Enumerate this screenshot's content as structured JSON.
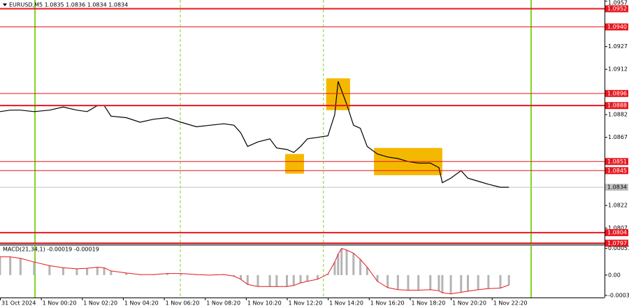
{
  "chart_data": [
    {
      "type": "line",
      "title": "EURUSD,M5 1.0835 1.0836 1.0834 1.0834",
      "x": [
        0,
        6,
        12,
        20,
        29,
        37,
        45,
        51,
        57,
        61,
        65,
        74,
        82,
        90,
        98,
        106,
        115,
        123,
        131,
        137,
        141,
        145,
        151,
        158,
        162,
        168,
        172,
        176,
        180,
        186,
        192,
        196,
        198,
        200,
        203,
        207,
        211,
        215,
        221,
        227,
        233,
        239,
        245,
        252,
        257,
        259,
        264,
        270,
        274,
        280,
        286,
        293,
        298
      ],
      "values": [
        1.0884,
        1.0885,
        1.0885,
        1.0884,
        1.0885,
        1.0887,
        1.0885,
        1.0884,
        1.0888,
        1.0888,
        1.0881,
        1.088,
        1.0877,
        1.0879,
        1.088,
        1.0877,
        1.0874,
        1.0875,
        1.0876,
        1.0875,
        1.087,
        1.0861,
        1.0864,
        1.0866,
        1.086,
        1.0859,
        1.0857,
        1.0861,
        1.0866,
        1.0867,
        1.0868,
        1.0882,
        1.0904,
        1.0898,
        1.0889,
        1.0875,
        1.0873,
        1.0861,
        1.0856,
        1.0854,
        1.0853,
        1.0851,
        1.085,
        1.085,
        1.0847,
        1.0837,
        1.084,
        1.0845,
        1.084,
        1.0838,
        1.0836,
        1.0834,
        1.0834
      ],
      "color": "#000000",
      "xlim": [
        0,
        354
      ],
      "ylim": [
        1.07962,
        1.09578
      ],
      "yticks": [
        1.0957,
        1.0927,
        1.0912,
        1.0882,
        1.0867,
        1.0822,
        1.0807
      ],
      "xticks": [
        {
          "value": 0,
          "label": "31 Oct 2024"
        },
        {
          "value": 24,
          "label": "1 Nov 00:20"
        },
        {
          "value": 48,
          "label": "1 Nov 02:20"
        },
        {
          "value": 72,
          "label": "1 Nov 04:20"
        },
        {
          "value": 96,
          "label": "1 Nov 06:20"
        },
        {
          "value": 120,
          "label": "1 Nov 08:20"
        },
        {
          "value": 144,
          "label": "1 Nov 10:20"
        },
        {
          "value": 168,
          "label": "1 Nov 12:20"
        },
        {
          "value": 192,
          "label": "1 Nov 14:20"
        },
        {
          "value": 216,
          "label": "1 Nov 16:20"
        },
        {
          "value": 240,
          "label": "1 Nov 18:20"
        },
        {
          "value": 264,
          "label": "1 Nov 20:20"
        },
        {
          "value": 288,
          "label": "1 Nov 22:20"
        }
      ],
      "levels": [
        {
          "value": 1.0952,
          "label": "1.0952",
          "weight": 2
        },
        {
          "value": 1.094,
          "label": "1.0940",
          "weight": 1
        },
        {
          "value": 1.0896,
          "label": "1.0896",
          "weight": 1
        },
        {
          "value": 1.0888,
          "label": "1.0888",
          "weight": 2
        },
        {
          "value": 1.0851,
          "label": "1.0851",
          "weight": 1
        },
        {
          "value": 1.0845,
          "label": "1.0845",
          "weight": 1
        },
        {
          "value": 1.0804,
          "label": "1.0804",
          "weight": 2
        },
        {
          "value": 1.0797,
          "label": "1.0797",
          "weight": 2
        }
      ],
      "level_color": "#e8171f",
      "last_price": 1.0834,
      "session_lines": [
        {
          "x": 20.5,
          "style": "solid"
        },
        {
          "x": 105.6,
          "style": "dashed"
        },
        {
          "x": 189.4,
          "style": "dashed"
        },
        {
          "x": 311,
          "style": "solid"
        }
      ],
      "session_color": "#7ed321",
      "zones": [
        {
          "x": [
            167,
            178
          ],
          "y": [
            1.0843,
            1.0856
          ]
        },
        {
          "x": [
            191,
            205
          ],
          "y": [
            1.0885,
            1.0906
          ]
        },
        {
          "x": [
            219,
            259
          ],
          "y": [
            1.0842,
            1.086
          ]
        }
      ],
      "zone_color": "#f5b800"
    },
    {
      "type": "bar",
      "title": "MACD(21,34,1) -0.00019 -0.00019",
      "values": [
        0.00035,
        0.00035,
        0.00032,
        0.00025,
        0.00018,
        0.00014,
        0.00012,
        0.00013,
        0.00015,
        0.00014,
        8e-05,
        4e-05,
        1e-05,
        1e-05,
        3e-05,
        3e-05,
        1e-05,
        0,
        1e-05,
        -2e-05,
        -8e-05,
        -0.00018,
        -0.00022,
        -0.00022,
        -0.00022,
        -0.00022,
        -0.0002,
        -0.00015,
        -0.00012,
        -8e-05,
        2e-05,
        0.00025,
        0.0004,
        0.00051,
        0.00048,
        0.00042,
        0.0003,
        0.00015,
        -0.00012,
        -0.00024,
        -0.00028,
        -0.00029,
        -0.00029,
        -0.00028,
        -0.0003,
        -0.00034,
        -0.00036,
        -0.00033,
        -0.00031,
        -0.00028,
        -0.00026,
        -0.00025,
        -0.00019
      ],
      "color": "#b4b4b4",
      "signal_color": "#e8171f",
      "ylim": [
        -0.00043,
        0.00056
      ],
      "yticks": [
        0.00051,
        {
          "value": 0,
          "label": "0.00"
        },
        -0.00039
      ]
    }
  ]
}
